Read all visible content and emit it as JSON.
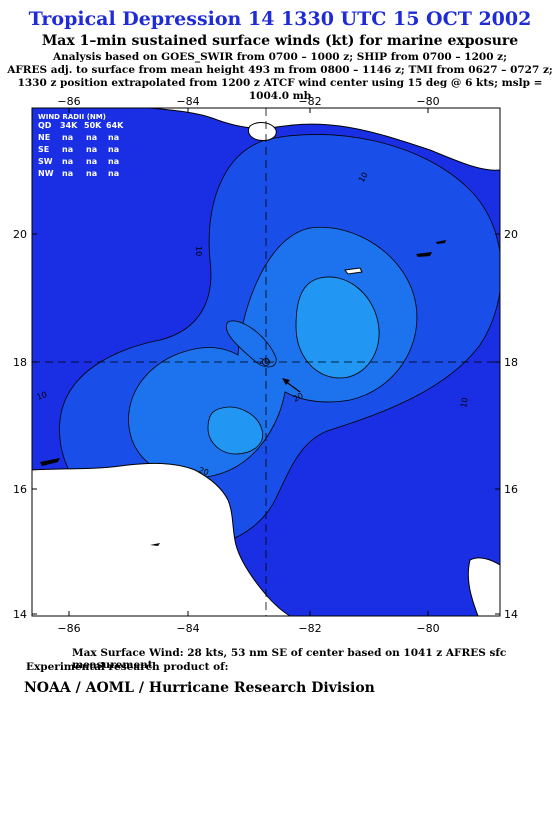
{
  "title": "Tropical Depression 14 1330 UTC 15 OCT 2002",
  "subtitle": "Max 1–min sustained surface winds (kt) for marine exposure",
  "analysis_notes": [
    "Analysis based on  GOES_SWIR from 0700 – 1000 z;  SHIP from 0700 – 1200 z;",
    "AFRES adj. to surface from mean height 493 m from 0800 – 1146 z;  TMI from 0627 – 0727 z;",
    "1330 z position extrapolated from 1200 z ATCF wind center using 15 deg @ 6 kts; mslp = 1004.0 mb"
  ],
  "map": {
    "lon_ticks": [
      "−86",
      "−84",
      "−82",
      "−80"
    ],
    "lat_ticks": [
      "20",
      "18",
      "16",
      "14"
    ],
    "contour_labels": {
      "c10_top": "10",
      "c10_left": "10",
      "c10_right": "10",
      "c10_bottom": "10",
      "c20_top": "20",
      "c20_bottom": "20",
      "c20_right": "20"
    },
    "colors": {
      "band_0": "#1a2fe3",
      "band_10": "#1a4ee8",
      "band_20": "#1d72ee",
      "band_25": "#2196f2",
      "land": "#ffffff"
    }
  },
  "wind_radii": {
    "title": "WIND RADII (NM)",
    "headers": [
      "QD",
      "34K",
      "50K",
      "64K"
    ],
    "rows": [
      {
        "qd": "NE",
        "k34": "na",
        "k50": "na",
        "k64": "na"
      },
      {
        "qd": "SE",
        "k34": "na",
        "k50": "na",
        "k64": "na"
      },
      {
        "qd": "SW",
        "k34": "na",
        "k50": "na",
        "k64": "na"
      },
      {
        "qd": "NW",
        "k34": "na",
        "k50": "na",
        "k64": "na"
      }
    ]
  },
  "footer": {
    "max_wind": "Max Surface Wind: 28 kts, 53 nm SE of center based on 1041 z AFRES sfc measurement",
    "experimental": "Experimental research product of:",
    "org": "NOAA / AOML / Hurricane Research Division"
  }
}
